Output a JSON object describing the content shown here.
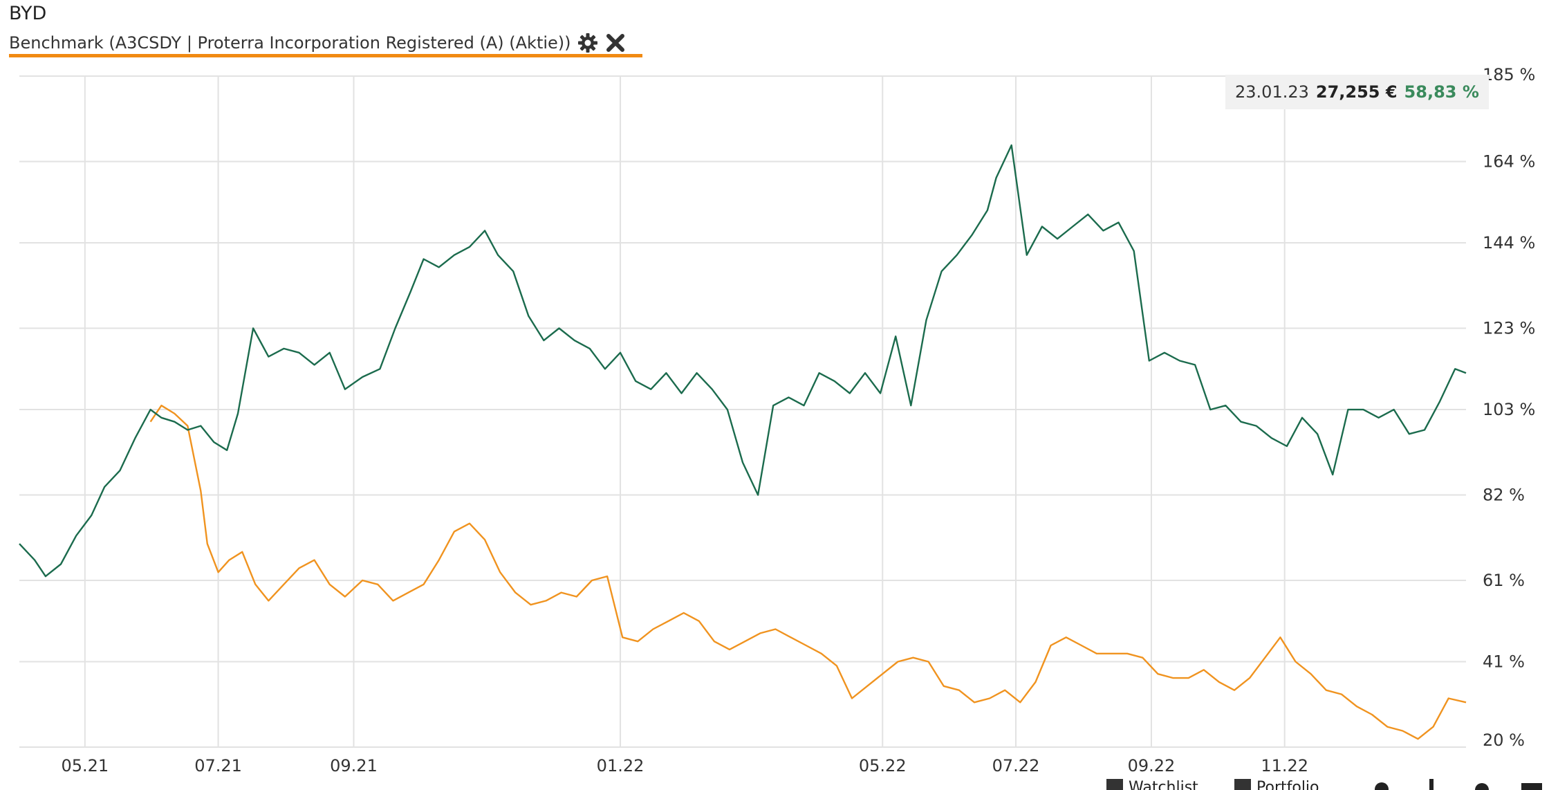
{
  "header": {
    "title": "BYD",
    "benchmark_label": "Benchmark (A3CSDY | Proterra Incorporation Registered (A) (Aktie))"
  },
  "tooltip": {
    "date": "23.01.23",
    "price": "27,255 €",
    "percent": "58,83 %"
  },
  "bottom_bar": {
    "watchlist_label": "Watchlist",
    "portfolio_label": "Portfolio"
  },
  "colors": {
    "main_series": "#1b6b4d",
    "benchmark_series": "#f0931f",
    "accent_underline": "#f18a12",
    "percent_text": "#3a8a5c",
    "grid": "#e2e2e2"
  },
  "chart_data": {
    "type": "line",
    "x_type": "date",
    "x_range": [
      "2021-04-01",
      "2023-01-23"
    ],
    "ylim": [
      20,
      185
    ],
    "y_ticks": [
      185,
      164,
      144,
      123,
      103,
      82,
      61,
      41,
      20
    ],
    "y_tick_labels": [
      "185 %",
      "164 %",
      "144 %",
      "123 %",
      "103 %",
      "82 %",
      "61 %",
      "41 %",
      "20 %"
    ],
    "x_ticks": [
      "2021-05-01",
      "2021-07-01",
      "2021-09-01",
      "2022-01-01",
      "2022-05-01",
      "2022-07-01",
      "2022-09-01",
      "2022-11-01"
    ],
    "x_tick_labels": [
      "05.21",
      "07.21",
      "09.21",
      "01.22",
      "05.22",
      "07.22",
      "09.22",
      "11.22"
    ],
    "grid": true,
    "series": [
      {
        "name": "BYD",
        "color": "#1b6b4d",
        "x": [
          "2021-04-01",
          "2021-04-08",
          "2021-04-13",
          "2021-04-20",
          "2021-04-27",
          "2021-05-04",
          "2021-05-10",
          "2021-05-17",
          "2021-05-24",
          "2021-05-31",
          "2021-06-05",
          "2021-06-11",
          "2021-06-17",
          "2021-06-23",
          "2021-06-29",
          "2021-07-05",
          "2021-07-10",
          "2021-07-17",
          "2021-07-24",
          "2021-07-31",
          "2021-08-07",
          "2021-08-14",
          "2021-08-21",
          "2021-08-28",
          "2021-09-05",
          "2021-09-13",
          "2021-09-20",
          "2021-09-27",
          "2021-10-03",
          "2021-10-10",
          "2021-10-17",
          "2021-10-24",
          "2021-10-31",
          "2021-11-06",
          "2021-11-13",
          "2021-11-20",
          "2021-11-27",
          "2021-12-04",
          "2021-12-11",
          "2021-12-18",
          "2021-12-25",
          "2022-01-01",
          "2022-01-08",
          "2022-01-15",
          "2022-01-22",
          "2022-01-29",
          "2022-02-05",
          "2022-02-12",
          "2022-02-19",
          "2022-02-26",
          "2022-03-05",
          "2022-03-12",
          "2022-03-19",
          "2022-03-26",
          "2022-04-02",
          "2022-04-09",
          "2022-04-16",
          "2022-04-23",
          "2022-04-30",
          "2022-05-07",
          "2022-05-14",
          "2022-05-21",
          "2022-05-28",
          "2022-06-04",
          "2022-06-11",
          "2022-06-18",
          "2022-06-22",
          "2022-06-29",
          "2022-07-06",
          "2022-07-13",
          "2022-07-20",
          "2022-07-27",
          "2022-08-03",
          "2022-08-10",
          "2022-08-17",
          "2022-08-24",
          "2022-08-31",
          "2022-09-07",
          "2022-09-14",
          "2022-09-21",
          "2022-09-28",
          "2022-10-05",
          "2022-10-12",
          "2022-10-19",
          "2022-10-26",
          "2022-11-02",
          "2022-11-09",
          "2022-11-16",
          "2022-11-23",
          "2022-11-30",
          "2022-12-07",
          "2022-12-14",
          "2022-12-21",
          "2022-12-28",
          "2023-01-04",
          "2023-01-11",
          "2023-01-18",
          "2023-01-23"
        ],
        "values": [
          70,
          66,
          62,
          65,
          72,
          77,
          84,
          88,
          96,
          103,
          101,
          100,
          98,
          99,
          95,
          93,
          102,
          123,
          116,
          118,
          117,
          114,
          117,
          108,
          111,
          113,
          123,
          132,
          140,
          138,
          141,
          143,
          147,
          141,
          137,
          126,
          120,
          123,
          120,
          118,
          113,
          117,
          110,
          108,
          112,
          107,
          112,
          108,
          103,
          90,
          82,
          104,
          106,
          104,
          112,
          110,
          107,
          112,
          107,
          121,
          104,
          125,
          137,
          141,
          146,
          152,
          160,
          168,
          141,
          148,
          145,
          148,
          151,
          147,
          149,
          142,
          115,
          117,
          115,
          114,
          103,
          104,
          100,
          99,
          96,
          94,
          101,
          97,
          87,
          103,
          103,
          101,
          103,
          97,
          98,
          105,
          113,
          112
        ]
      },
      {
        "name": "A3CSDY",
        "color": "#f0931f",
        "x": [
          "2021-05-31",
          "2021-06-05",
          "2021-06-11",
          "2021-06-17",
          "2021-06-23",
          "2021-06-26",
          "2021-07-01",
          "2021-07-06",
          "2021-07-12",
          "2021-07-18",
          "2021-07-24",
          "2021-07-31",
          "2021-08-07",
          "2021-08-14",
          "2021-08-21",
          "2021-08-28",
          "2021-09-05",
          "2021-09-12",
          "2021-09-19",
          "2021-09-26",
          "2021-10-03",
          "2021-10-10",
          "2021-10-17",
          "2021-10-24",
          "2021-10-31",
          "2021-11-07",
          "2021-11-14",
          "2021-11-21",
          "2021-11-28",
          "2021-12-05",
          "2021-12-12",
          "2021-12-19",
          "2021-12-26",
          "2022-01-02",
          "2022-01-09",
          "2022-01-16",
          "2022-01-23",
          "2022-01-30",
          "2022-02-06",
          "2022-02-13",
          "2022-02-20",
          "2022-02-27",
          "2022-03-06",
          "2022-03-13",
          "2022-03-20",
          "2022-03-27",
          "2022-04-03",
          "2022-04-10",
          "2022-04-17",
          "2022-04-24",
          "2022-05-01",
          "2022-05-08",
          "2022-05-15",
          "2022-05-22",
          "2022-05-29",
          "2022-06-05",
          "2022-06-12",
          "2022-06-19",
          "2022-06-26",
          "2022-07-03",
          "2022-07-10",
          "2022-07-17",
          "2022-07-24",
          "2022-07-31",
          "2022-08-07",
          "2022-08-14",
          "2022-08-21",
          "2022-08-28",
          "2022-09-04",
          "2022-09-11",
          "2022-09-18",
          "2022-09-25",
          "2022-10-02",
          "2022-10-09",
          "2022-10-16",
          "2022-10-23",
          "2022-10-30",
          "2022-11-06",
          "2022-11-13",
          "2022-11-20",
          "2022-11-27",
          "2022-12-04",
          "2022-12-11",
          "2022-12-18",
          "2022-12-25",
          "2023-01-01",
          "2023-01-08",
          "2023-01-15",
          "2023-01-23"
        ],
        "values": [
          100,
          104,
          102,
          99,
          83,
          70,
          63,
          66,
          68,
          60,
          56,
          60,
          64,
          66,
          60,
          57,
          61,
          60,
          56,
          58,
          60,
          66,
          73,
          75,
          71,
          63,
          58,
          55,
          56,
          58,
          57,
          61,
          62,
          47,
          46,
          49,
          51,
          53,
          51,
          46,
          44,
          46,
          48,
          49,
          47,
          45,
          43,
          40,
          32,
          35,
          38,
          41,
          42,
          41,
          35,
          34,
          31,
          32,
          34,
          31,
          36,
          45,
          47,
          45,
          43,
          43,
          43,
          42,
          38,
          37,
          37,
          39,
          36,
          34,
          37,
          42,
          47,
          41,
          38,
          34,
          33,
          30,
          28,
          25,
          24,
          22,
          25,
          32,
          31
        ]
      }
    ]
  }
}
